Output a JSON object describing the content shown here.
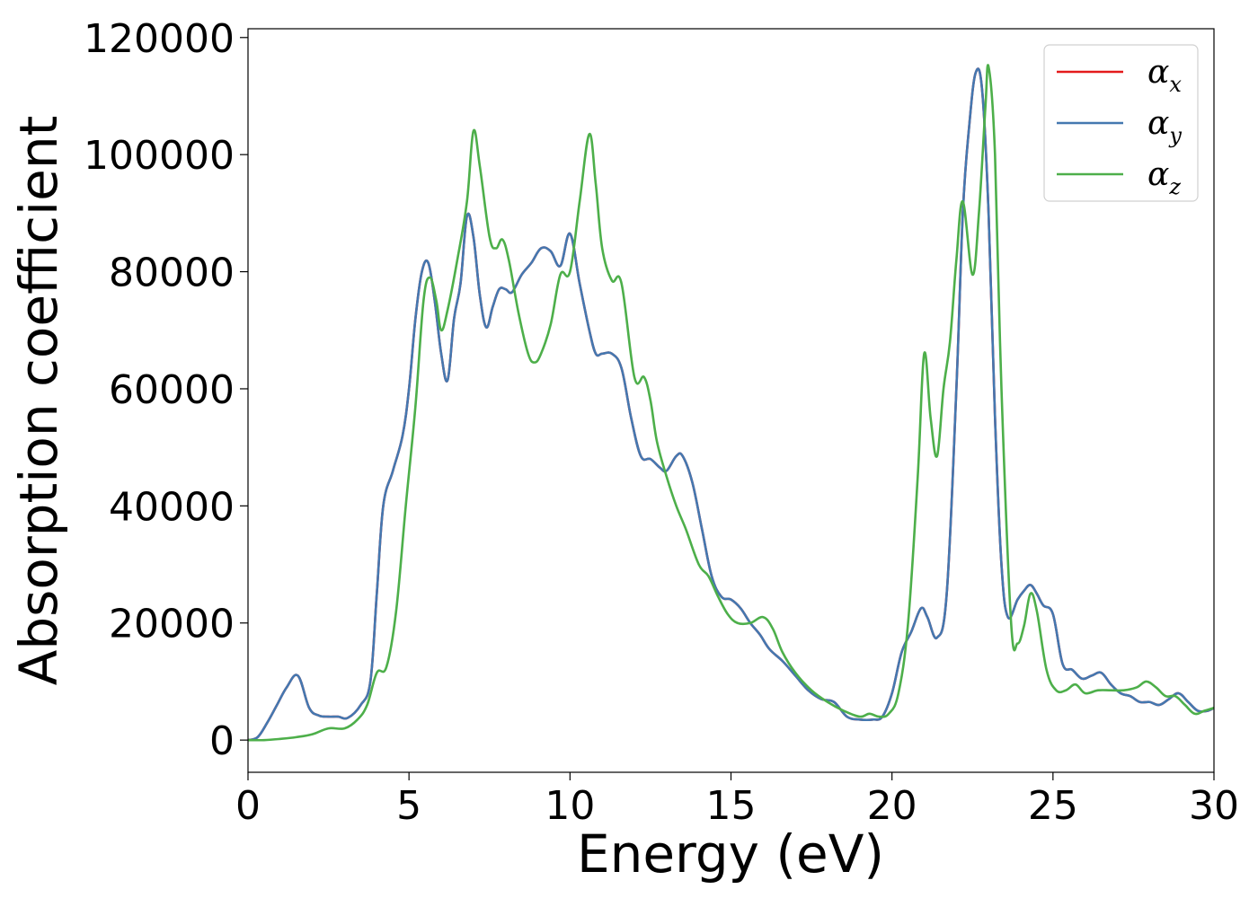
{
  "chart_data": {
    "type": "line",
    "title": "",
    "xlabel": "Energy (eV)",
    "ylabel": "Absorption coefficient",
    "xlim": [
      0,
      30
    ],
    "ylim": [
      -5500,
      121500
    ],
    "xticks": [
      0,
      5,
      10,
      15,
      20,
      25,
      30
    ],
    "yticks": [
      0,
      20000,
      40000,
      60000,
      80000,
      100000,
      120000
    ],
    "xtick_labels": [
      "0",
      "5",
      "10",
      "15",
      "20",
      "25",
      "30"
    ],
    "ytick_labels": [
      "0",
      "20000",
      "40000",
      "60000",
      "80000",
      "100000",
      "120000"
    ],
    "grid": false,
    "legend_position": "top-right",
    "series": [
      {
        "name": "αx",
        "symbol": "α",
        "subscript": "x",
        "color": "#e41a1c",
        "x": [
          0,
          0.3,
          0.6,
          0.9,
          1.2,
          1.55,
          1.9,
          2.2,
          2.5,
          2.8,
          3.1,
          3.5,
          3.8,
          4.0,
          4.2,
          4.5,
          4.8,
          5.0,
          5.2,
          5.4,
          5.6,
          5.8,
          6.0,
          6.2,
          6.4,
          6.6,
          6.8,
          7.0,
          7.2,
          7.4,
          7.6,
          7.8,
          8.0,
          8.2,
          8.5,
          8.8,
          9.1,
          9.4,
          9.7,
          10.0,
          10.3,
          10.6,
          10.8,
          11.0,
          11.3,
          11.6,
          11.9,
          12.2,
          12.5,
          12.8,
          13.0,
          13.3,
          13.5,
          13.8,
          14.1,
          14.4,
          14.7,
          15.0,
          15.3,
          15.6,
          15.9,
          16.2,
          16.6,
          17.0,
          17.4,
          17.8,
          18.2,
          18.6,
          19.0,
          19.4,
          19.7,
          20.0,
          20.3,
          20.6,
          20.9,
          21.1,
          21.4,
          21.7,
          22.0,
          22.2,
          22.4,
          22.6,
          22.8,
          23.0,
          23.2,
          23.4,
          23.6,
          23.9,
          24.1,
          24.3,
          24.5,
          24.7,
          25.0,
          25.3,
          25.6,
          25.9,
          26.2,
          26.5,
          26.8,
          27.1,
          27.4,
          27.7,
          28.0,
          28.3,
          28.6,
          28.9,
          29.2,
          29.5,
          29.8,
          30.0
        ],
        "y": [
          0,
          500,
          3000,
          6000,
          9000,
          11000,
          5500,
          4200,
          4000,
          4000,
          3800,
          6000,
          10000,
          25000,
          40000,
          46000,
          52000,
          60000,
          72000,
          80000,
          81500,
          75000,
          66000,
          61500,
          72000,
          78000,
          89500,
          86000,
          76000,
          70500,
          74000,
          77000,
          77000,
          76500,
          79500,
          81500,
          84000,
          83500,
          81000,
          86500,
          78000,
          70000,
          66000,
          66000,
          66000,
          63500,
          55000,
          48500,
          48000,
          46500,
          46000,
          48500,
          48500,
          44000,
          36000,
          28000,
          24500,
          24000,
          22500,
          20000,
          18000,
          15500,
          13500,
          11000,
          8500,
          7000,
          6500,
          4000,
          3500,
          3500,
          4000,
          8000,
          15000,
          18500,
          22500,
          21000,
          17500,
          25000,
          60000,
          90000,
          105000,
          114000,
          111000,
          90000,
          55000,
          30000,
          21000,
          24000,
          25500,
          26500,
          25000,
          23000,
          21500,
          13000,
          12000,
          10500,
          11000,
          11500,
          9500,
          8000,
          7500,
          6500,
          6500,
          6000,
          7000,
          8000,
          6500,
          5000,
          5000,
          5500
        ]
      },
      {
        "name": "αy",
        "symbol": "α",
        "subscript": "y",
        "color": "#4478b0",
        "x": [
          0,
          0.3,
          0.6,
          0.9,
          1.2,
          1.55,
          1.9,
          2.2,
          2.5,
          2.8,
          3.1,
          3.5,
          3.8,
          4.0,
          4.2,
          4.5,
          4.8,
          5.0,
          5.2,
          5.4,
          5.6,
          5.8,
          6.0,
          6.2,
          6.4,
          6.6,
          6.8,
          7.0,
          7.2,
          7.4,
          7.6,
          7.8,
          8.0,
          8.2,
          8.5,
          8.8,
          9.1,
          9.4,
          9.7,
          10.0,
          10.3,
          10.6,
          10.8,
          11.0,
          11.3,
          11.6,
          11.9,
          12.2,
          12.5,
          12.8,
          13.0,
          13.3,
          13.5,
          13.8,
          14.1,
          14.4,
          14.7,
          15.0,
          15.3,
          15.6,
          15.9,
          16.2,
          16.6,
          17.0,
          17.4,
          17.8,
          18.2,
          18.6,
          19.0,
          19.4,
          19.7,
          20.0,
          20.3,
          20.6,
          20.9,
          21.1,
          21.4,
          21.7,
          22.0,
          22.2,
          22.4,
          22.6,
          22.8,
          23.0,
          23.2,
          23.4,
          23.6,
          23.9,
          24.1,
          24.3,
          24.5,
          24.7,
          25.0,
          25.3,
          25.6,
          25.9,
          26.2,
          26.5,
          26.8,
          27.1,
          27.4,
          27.7,
          28.0,
          28.3,
          28.6,
          28.9,
          29.2,
          29.5,
          29.8,
          30.0
        ],
        "y": [
          0,
          500,
          3000,
          6000,
          9000,
          11000,
          5500,
          4200,
          4000,
          4000,
          3800,
          6000,
          10000,
          25000,
          40000,
          46000,
          52000,
          60000,
          72000,
          80000,
          81500,
          75000,
          66000,
          61500,
          72000,
          78000,
          89500,
          86000,
          76000,
          70500,
          74000,
          77000,
          77000,
          76500,
          79500,
          81500,
          84000,
          83500,
          81000,
          86500,
          78000,
          70000,
          66000,
          66000,
          66000,
          63500,
          55000,
          48500,
          48000,
          46500,
          46000,
          48500,
          48500,
          44000,
          36000,
          28000,
          24500,
          24000,
          22500,
          20000,
          18000,
          15500,
          13500,
          11000,
          8500,
          7000,
          6500,
          4000,
          3500,
          3500,
          4000,
          8000,
          15000,
          18500,
          22500,
          21000,
          17500,
          25000,
          60000,
          90000,
          105000,
          114000,
          111000,
          90000,
          55000,
          30000,
          21000,
          24000,
          25500,
          26500,
          25000,
          23000,
          21500,
          13000,
          12000,
          10500,
          11000,
          11500,
          9500,
          8000,
          7500,
          6500,
          6500,
          6000,
          7000,
          8000,
          6500,
          5000,
          5000,
          5500
        ]
      },
      {
        "name": "αz",
        "symbol": "α",
        "subscript": "z",
        "color": "#4daf4a",
        "x": [
          0,
          0.5,
          1.0,
          1.5,
          2.0,
          2.5,
          3.0,
          3.4,
          3.7,
          4.0,
          4.3,
          4.6,
          4.9,
          5.2,
          5.45,
          5.65,
          5.85,
          6.0,
          6.2,
          6.5,
          6.8,
          7.0,
          7.2,
          7.5,
          7.7,
          7.9,
          8.1,
          8.4,
          8.7,
          8.9,
          9.1,
          9.4,
          9.7,
          10.0,
          10.3,
          10.6,
          10.8,
          11.0,
          11.3,
          11.6,
          12.0,
          12.3,
          12.5,
          12.7,
          13.0,
          13.3,
          13.6,
          14.0,
          14.3,
          14.6,
          14.9,
          15.2,
          15.6,
          16.0,
          16.3,
          16.6,
          17.0,
          17.5,
          18.0,
          18.5,
          19.0,
          19.3,
          19.6,
          19.9,
          20.2,
          20.5,
          20.8,
          21.0,
          21.2,
          21.4,
          21.6,
          21.8,
          22.0,
          22.2,
          22.5,
          22.7,
          22.9,
          23.0,
          23.2,
          23.4,
          23.7,
          23.9,
          24.1,
          24.3,
          24.5,
          24.8,
          25.1,
          25.4,
          25.7,
          26.0,
          26.4,
          26.8,
          27.2,
          27.6,
          27.9,
          28.2,
          28.5,
          28.8,
          29.1,
          29.4,
          29.7,
          30.0
        ],
        "y": [
          0,
          0,
          200,
          500,
          1000,
          2000,
          2000,
          3500,
          6000,
          11500,
          12500,
          22000,
          40000,
          57000,
          75000,
          79000,
          75000,
          70000,
          73500,
          82000,
          92000,
          104000,
          98000,
          86000,
          84000,
          85500,
          82000,
          73000,
          66000,
          64500,
          66000,
          71000,
          79500,
          80000,
          92000,
          103500,
          95000,
          84000,
          78500,
          78000,
          62000,
          62000,
          58000,
          51000,
          45000,
          40000,
          36000,
          30000,
          28000,
          24500,
          21500,
          20000,
          20000,
          21000,
          19000,
          15000,
          11500,
          8500,
          6500,
          5000,
          4000,
          4500,
          4000,
          4500,
          8000,
          20000,
          45000,
          66000,
          55000,
          48500,
          60000,
          68000,
          82000,
          92000,
          79500,
          90000,
          108000,
          115000,
          100000,
          60000,
          20000,
          16500,
          19500,
          25000,
          22000,
          12000,
          8500,
          8500,
          9500,
          8000,
          8500,
          8500,
          8500,
          9000,
          10000,
          9000,
          7500,
          7500,
          6000,
          4500,
          5000,
          5500
        ]
      }
    ]
  }
}
